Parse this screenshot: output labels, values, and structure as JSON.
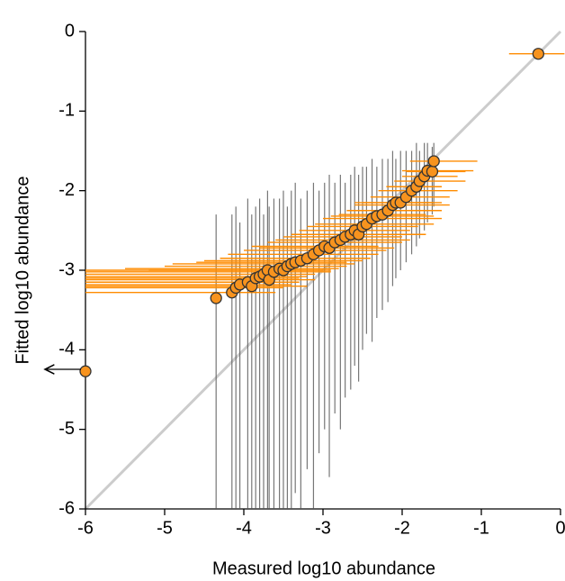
{
  "chart_data": {
    "type": "scatter",
    "x_label": "Measured log10 abundance",
    "y_label": "Fitted log10 abundance",
    "xlim": [
      -6,
      0
    ],
    "ylim": [
      -6,
      0
    ],
    "xticks": [
      -6,
      -5,
      -4,
      -3,
      -2,
      -1,
      0
    ],
    "yticks": [
      0,
      -1,
      -2,
      -3,
      -4,
      -5,
      -6
    ],
    "diagonal": true,
    "color": "#f7931e",
    "x_error_color": "#ff8c00",
    "y_error_color": "#555555",
    "x": [
      -4.15,
      -4.1,
      -4.05,
      -3.95,
      -3.9,
      -3.85,
      -3.8,
      -3.75,
      -3.7,
      -3.68,
      -3.62,
      -3.55,
      -3.5,
      -3.45,
      -3.4,
      -3.35,
      -3.28,
      -3.2,
      -3.12,
      -3.05,
      -2.98,
      -2.92,
      -2.85,
      -2.78,
      -2.72,
      -2.65,
      -2.6,
      -2.55,
      -2.5,
      -2.45,
      -2.38,
      -2.32,
      -2.25,
      -2.18,
      -2.12,
      -2.08,
      -2.02,
      -1.95,
      -1.88,
      -1.82,
      -1.78,
      -1.72,
      -1.68,
      -1.62,
      -1.6,
      -4.35,
      -6,
      -0.28
    ],
    "y": [
      -3.28,
      -3.22,
      -3.18,
      -3.15,
      -3.2,
      -3.1,
      -3.08,
      -3.05,
      -3.0,
      -3.12,
      -3.02,
      -2.98,
      -3.0,
      -2.95,
      -2.92,
      -2.9,
      -2.88,
      -2.85,
      -2.8,
      -2.75,
      -2.7,
      -2.72,
      -2.65,
      -2.62,
      -2.58,
      -2.55,
      -2.5,
      -2.55,
      -2.45,
      -2.42,
      -2.35,
      -2.32,
      -2.3,
      -2.25,
      -2.18,
      -2.15,
      -2.15,
      -2.08,
      -2.0,
      -1.95,
      -1.88,
      -1.82,
      -1.75,
      -1.76,
      -1.63,
      -3.35,
      -4.27,
      -0.28
    ],
    "x_lower": [
      -6,
      -6,
      -6,
      -6,
      -6,
      -6,
      -6,
      -6,
      -6,
      -6,
      -6,
      -5.5,
      -5.2,
      -5,
      -4.9,
      -4.6,
      -4.5,
      -4.3,
      -4.2,
      -4.0,
      -3.9,
      -3.8,
      -3.7,
      -3.6,
      -3.5,
      -3.4,
      -3.3,
      -3.2,
      -3.2,
      -3.1,
      -3.0,
      -2.9,
      -2.8,
      -2.7,
      -2.6,
      -2.6,
      -2.5,
      -2.4,
      -2.3,
      -2.2,
      -2.1,
      -2.0,
      -2.0,
      -1.95,
      -1.9,
      null,
      null,
      -0.65
    ],
    "x_upper": [
      -3.6,
      -3.5,
      -3.4,
      -3.3,
      -3.2,
      -3.3,
      -3.2,
      -3.1,
      -3.0,
      -3.1,
      -2.9,
      -2.8,
      -2.9,
      -2.7,
      -2.6,
      -2.7,
      -2.5,
      -2.4,
      -2.3,
      -2.2,
      -2.3,
      -2.1,
      -2.0,
      -1.9,
      -2.0,
      -1.8,
      -1.9,
      -1.7,
      -1.8,
      -1.6,
      -1.5,
      -1.6,
      -1.7,
      -1.5,
      -1.4,
      -1.5,
      -1.6,
      -1.4,
      -1.3,
      -1.5,
      -1.2,
      -1.3,
      -1.1,
      -1.2,
      -1.05,
      null,
      null,
      0.05
    ],
    "y_lower": [
      -6,
      -6,
      -6,
      -6,
      -6,
      -6,
      -6,
      -6,
      -6,
      -6,
      -6,
      -6,
      -6,
      -6,
      -6,
      -5.8,
      -6,
      -5.5,
      -6,
      -5.3,
      -5.0,
      -5.6,
      -4.8,
      -5.0,
      -4.6,
      -4.5,
      -4.2,
      -4.4,
      -4.0,
      -3.8,
      -3.9,
      -3.6,
      -3.5,
      -3.4,
      -3.2,
      -3.1,
      -3.0,
      -2.9,
      -2.8,
      -2.7,
      -2.6,
      -2.5,
      -2.4,
      -2.3,
      -2.2,
      -6,
      null,
      null
    ],
    "y_upper": [
      -2.3,
      -2.2,
      -2.4,
      -2.1,
      -2.3,
      -2.2,
      -2.1,
      -2.3,
      -2.0,
      -2.2,
      -2.1,
      -2.1,
      -2.0,
      -2.2,
      -2.0,
      -1.9,
      -2.1,
      -2.0,
      -1.9,
      -2.0,
      -1.9,
      -1.8,
      -1.9,
      -1.8,
      -1.9,
      -1.8,
      -1.7,
      -1.8,
      -1.7,
      -1.7,
      -1.6,
      -1.7,
      -1.6,
      -1.6,
      -1.5,
      -1.6,
      -1.5,
      -1.5,
      -1.5,
      -1.4,
      -1.5,
      -1.4,
      -1.4,
      -1.45,
      -1.4,
      -2.3,
      null,
      null
    ]
  }
}
